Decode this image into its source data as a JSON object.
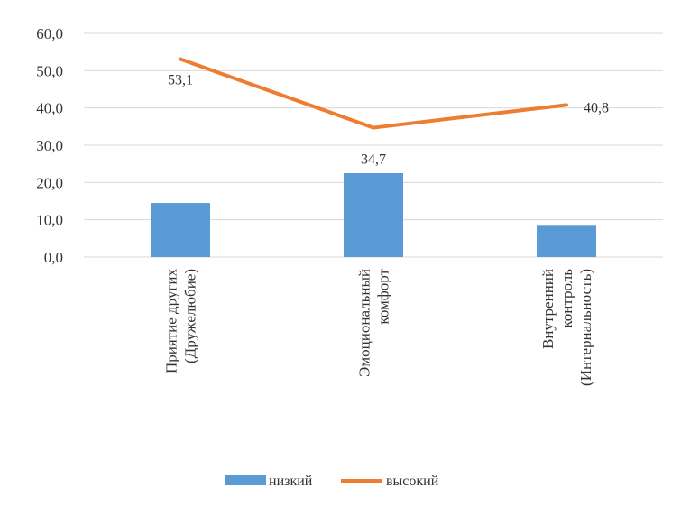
{
  "chart_data": {
    "type": "bar+line",
    "categories": [
      [
        "Приятие других",
        "(Дружелюбие)"
      ],
      [
        "Эмоциональный",
        "комфорт"
      ],
      [
        "Внутренний",
        "контроль",
        "(Интернальность)"
      ]
    ],
    "series": [
      {
        "name": "низкий",
        "type": "bar",
        "values": [
          14.5,
          22.5,
          8.4
        ],
        "color": "#5b9bd5"
      },
      {
        "name": "высокий",
        "type": "line",
        "values": [
          53.1,
          34.7,
          40.8
        ],
        "color": "#ed7d31",
        "data_labels": [
          "53,1",
          "34,7",
          "40,8"
        ]
      }
    ],
    "ylim": [
      0,
      60
    ],
    "yticks": [
      0,
      10,
      20,
      30,
      40,
      50,
      60
    ],
    "ytick_labels": [
      "0,0",
      "10,0",
      "20,0",
      "30,0",
      "40,0",
      "50,0",
      "60,0"
    ],
    "grid": true,
    "legend_position": "bottom"
  }
}
